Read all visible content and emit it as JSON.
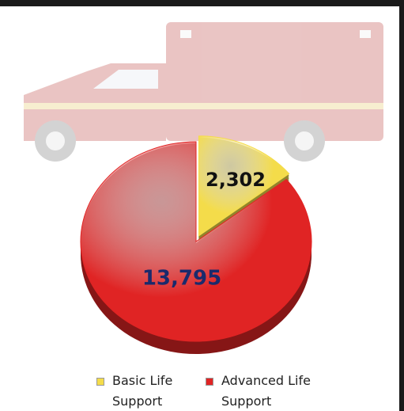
{
  "chart_data": {
    "type": "pie",
    "categories": [
      "Basic Life Support",
      "Advanced Life Support"
    ],
    "values": [
      2302,
      13795
    ],
    "value_labels": [
      "2,302",
      "13,795"
    ],
    "colors": [
      "#f4dc4a",
      "#e02424"
    ]
  }
}
